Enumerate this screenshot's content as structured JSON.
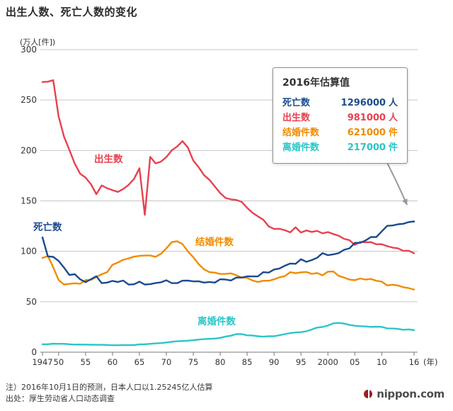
{
  "title": "出生人数、死亡人数的变化",
  "callout": {
    "title": "2016年估算值",
    "rows": [
      {
        "label": "死亡数",
        "value": "1296000",
        "unit": "人",
        "color": "#1b4b8f"
      },
      {
        "label": "出生数",
        "value": "981000",
        "unit": "人",
        "color": "#e8414f"
      },
      {
        "label": "结婚件数",
        "value": "621000",
        "unit": "件",
        "color": "#f08c00"
      },
      {
        "label": "离婚件数",
        "value": "217000",
        "unit": "件",
        "color": "#2cc5c8"
      }
    ]
  },
  "footer": {
    "note1": "注）2016年10月1日的预测，日本人口以1.25245亿人估算",
    "note2": "出处：厚生劳动省人口动态调查"
  },
  "logo_text": "nippon.com",
  "chart_data": {
    "type": "line",
    "title": "出生人数、死亡人数的变化",
    "ylabel": "(万人[件])",
    "xlabel": "(年)",
    "ylim": [
      0,
      300
    ],
    "x_range": [
      1947,
      2016
    ],
    "grid": true,
    "legend": "inline-labels",
    "y_ticks": [
      0,
      50,
      100,
      150,
      200,
      250,
      300
    ],
    "x_tick_years": [
      1947,
      1950,
      1955,
      1960,
      1965,
      1970,
      1975,
      1980,
      1985,
      1990,
      1995,
      2000,
      2005,
      2010,
      2016
    ],
    "x_tick_labels": [
      "1947",
      "50",
      "55",
      "60",
      "65",
      "70",
      "75",
      "80",
      "85",
      "90",
      "95",
      "2000",
      "05",
      "10",
      "16"
    ],
    "x": [
      1947,
      1948,
      1949,
      1950,
      1951,
      1952,
      1953,
      1954,
      1955,
      1956,
      1957,
      1958,
      1959,
      1960,
      1961,
      1962,
      1963,
      1964,
      1965,
      1966,
      1967,
      1968,
      1969,
      1970,
      1971,
      1972,
      1973,
      1974,
      1975,
      1976,
      1977,
      1978,
      1979,
      1980,
      1981,
      1982,
      1983,
      1984,
      1985,
      1986,
      1987,
      1988,
      1989,
      1990,
      1991,
      1992,
      1993,
      1994,
      1995,
      1996,
      1997,
      1998,
      1999,
      2000,
      2001,
      2002,
      2003,
      2004,
      2005,
      2006,
      2007,
      2008,
      2009,
      2010,
      2011,
      2012,
      2013,
      2014,
      2015,
      2016
    ],
    "series": [
      {
        "id": "births",
        "name": "出生数",
        "color": "#e8414f",
        "values": [
          267.9,
          268.2,
          269.7,
          233.8,
          213.8,
          200.5,
          186.8,
          176.9,
          173.1,
          166.5,
          156.7,
          165.3,
          162.6,
          160.6,
          158.9,
          161.8,
          165.9,
          171.7,
          182.4,
          136.1,
          193.6,
          187.2,
          188.9,
          193.4,
          200.1,
          203.9,
          209.2,
          202.9,
          190.1,
          183.3,
          175.5,
          170.9,
          164.3,
          157.7,
          152.9,
          151.5,
          150.9,
          149.0,
          143.2,
          138.3,
          134.7,
          131.4,
          124.7,
          122.2,
          122.3,
          120.9,
          118.8,
          123.8,
          118.7,
          120.7,
          119.2,
          120.3,
          117.8,
          119.1,
          117.1,
          115.4,
          112.4,
          111.1,
          106.3,
          109.3,
          109.0,
          109.1,
          107.0,
          107.1,
          105.1,
          103.7,
          103.0,
          100.4,
          100.6,
          98.1
        ]
      },
      {
        "id": "deaths",
        "name": "死亡数",
        "color": "#1b4b8f",
        "values": [
          113.8,
          95.0,
          94.5,
          90.5,
          83.9,
          76.6,
          77.3,
          72.2,
          69.4,
          72.4,
          75.3,
          68.4,
          69.0,
          70.7,
          69.6,
          71.0,
          67.0,
          67.3,
          70.0,
          67.0,
          67.5,
          68.6,
          69.3,
          71.3,
          68.5,
          68.4,
          70.9,
          71.0,
          70.2,
          70.3,
          69.0,
          69.6,
          69.0,
          72.3,
          72.0,
          71.1,
          74.0,
          74.0,
          75.2,
          75.1,
          75.1,
          79.3,
          78.9,
          82.0,
          83.0,
          85.7,
          87.9,
          87.6,
          92.2,
          89.6,
          91.3,
          93.6,
          98.2,
          96.2,
          97.0,
          98.2,
          101.5,
          102.9,
          108.4,
          108.4,
          110.8,
          114.2,
          114.2,
          119.7,
          125.3,
          125.6,
          126.8,
          127.3,
          129.0,
          129.6
        ]
      },
      {
        "id": "marriages",
        "name": "结婚件数",
        "color": "#f08c00",
        "values": [
          93.4,
          95.4,
          84.2,
          71.5,
          67.1,
          67.7,
          68.3,
          67.9,
          71.5,
          71.6,
          74.6,
          77.3,
          79.3,
          86.6,
          88.9,
          91.6,
          93.0,
          94.7,
          95.5,
          95.8,
          95.8,
          94.6,
          97.6,
          102.9,
          109.1,
          110.0,
          107.2,
          100.0,
          94.2,
          87.2,
          82.1,
          79.3,
          78.9,
          77.5,
          77.7,
          78.1,
          76.3,
          74.0,
          73.6,
          71.1,
          69.6,
          70.8,
          70.8,
          72.2,
          74.2,
          75.4,
          79.3,
          78.3,
          79.2,
          79.5,
          77.6,
          78.5,
          76.2,
          79.8,
          80.0,
          75.7,
          74.0,
          72.0,
          71.4,
          73.1,
          72.0,
          72.6,
          70.8,
          70.0,
          66.2,
          66.9,
          66.1,
          64.4,
          63.5,
          62.1
        ]
      },
      {
        "id": "divorces",
        "name": "离婚件数",
        "color": "#2cc5c8",
        "values": [
          7.9,
          7.9,
          8.4,
          8.3,
          8.3,
          7.9,
          7.5,
          7.6,
          7.5,
          7.4,
          7.3,
          7.3,
          7.2,
          6.9,
          6.9,
          7.1,
          7.0,
          7.1,
          7.7,
          7.9,
          8.3,
          8.7,
          9.0,
          9.6,
          10.3,
          10.8,
          11.1,
          11.4,
          11.9,
          12.5,
          12.9,
          13.2,
          13.5,
          14.2,
          15.5,
          16.4,
          17.9,
          17.9,
          16.7,
          16.6,
          15.8,
          15.4,
          15.8,
          15.8,
          16.8,
          17.9,
          18.9,
          19.5,
          19.9,
          20.7,
          22.5,
          24.4,
          25.0,
          26.4,
          28.6,
          29.0,
          28.4,
          27.1,
          26.2,
          25.8,
          25.5,
          25.1,
          25.3,
          25.1,
          23.6,
          23.5,
          23.1,
          22.2,
          22.6,
          21.7
        ]
      }
    ]
  }
}
